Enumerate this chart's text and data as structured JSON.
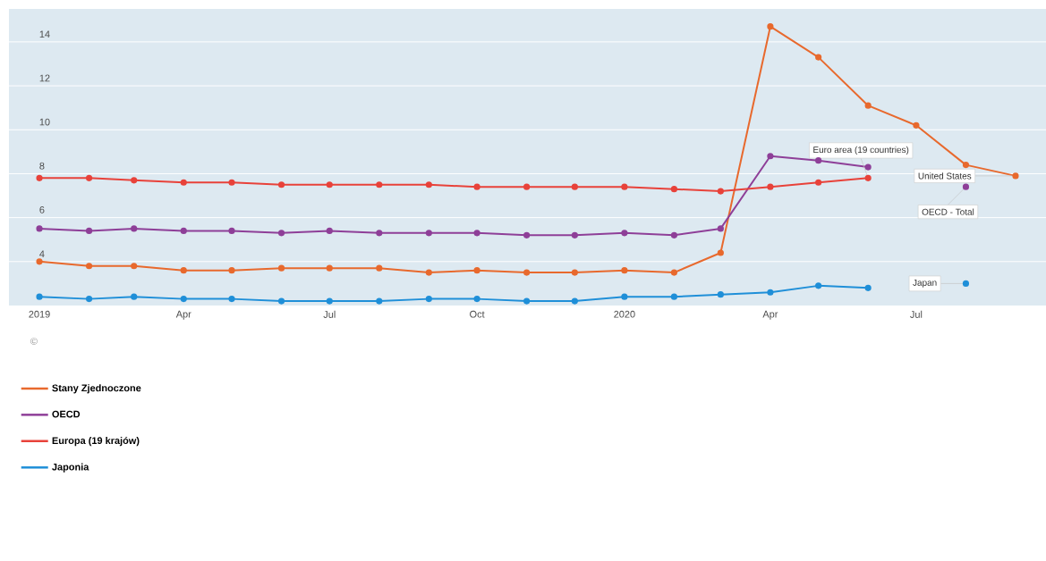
{
  "chart_data": {
    "type": "line",
    "x": [
      "2019-01",
      "2019-02",
      "2019-03",
      "2019-04",
      "2019-05",
      "2019-06",
      "2019-07",
      "2019-08",
      "2019-09",
      "2019-10",
      "2019-11",
      "2019-12",
      "2020-01",
      "2020-02",
      "2020-03",
      "2020-04",
      "2020-05",
      "2020-06",
      "2020-07",
      "2020-08",
      "2020-09"
    ],
    "series": [
      {
        "name": "Stany Zjednoczone",
        "color": "#e8692d",
        "values": [
          4.0,
          3.8,
          3.8,
          3.6,
          3.6,
          3.7,
          3.7,
          3.7,
          3.5,
          3.6,
          3.5,
          3.5,
          3.6,
          3.5,
          4.4,
          14.7,
          13.3,
          11.1,
          10.2,
          8.4,
          7.9
        ]
      },
      {
        "name": "OECD",
        "color": "#8e3f98",
        "values": [
          5.5,
          5.4,
          5.5,
          5.4,
          5.4,
          5.3,
          5.4,
          5.3,
          5.3,
          5.3,
          5.2,
          5.2,
          5.3,
          5.2,
          5.5,
          8.8,
          8.6,
          8.3,
          null,
          7.4,
          null
        ]
      },
      {
        "name": "Europa (19 krajów)",
        "color": "#e8423a",
        "values": [
          7.8,
          7.8,
          7.7,
          7.6,
          7.6,
          7.5,
          7.5,
          7.5,
          7.5,
          7.4,
          7.4,
          7.4,
          7.4,
          7.3,
          7.2,
          7.4,
          7.6,
          7.8,
          null,
          null,
          null
        ]
      },
      {
        "name": "Japonia",
        "color": "#1f8fd8",
        "values": [
          2.4,
          2.3,
          2.4,
          2.3,
          2.3,
          2.2,
          2.2,
          2.2,
          2.3,
          2.3,
          2.2,
          2.2,
          2.4,
          2.4,
          2.5,
          2.6,
          2.9,
          2.8,
          null,
          3.0,
          null
        ]
      }
    ],
    "xlim": [
      "2018-12-13",
      "2020-09-20"
    ],
    "xticks": [
      {
        "value": "2019-01",
        "label": "2019"
      },
      {
        "value": "2019-04",
        "label": "Apr"
      },
      {
        "value": "2019-07",
        "label": "Jul"
      },
      {
        "value": "2019-10",
        "label": "Oct"
      },
      {
        "value": "2020-01",
        "label": "2020"
      },
      {
        "value": "2020-04",
        "label": "Apr"
      },
      {
        "value": "2020-07",
        "label": "Jul"
      }
    ],
    "ylim": [
      2,
      15.5
    ],
    "yticks": [
      4,
      6,
      8,
      10,
      12,
      14
    ],
    "grid": "y",
    "marker": "circle",
    "line_style": "solid",
    "legend": "bottom",
    "annotations": [
      {
        "text": "Euro area (19 countries)",
        "x": "2020-06",
        "y": 7.8
      },
      {
        "text": "United States",
        "x": "2020-09",
        "y": 7.9
      },
      {
        "text": "OECD - Total",
        "x": "2020-08",
        "y": 7.4
      },
      {
        "text": "Japan",
        "x": "2020-08",
        "y": 3.0
      },
      "©"
    ]
  }
}
